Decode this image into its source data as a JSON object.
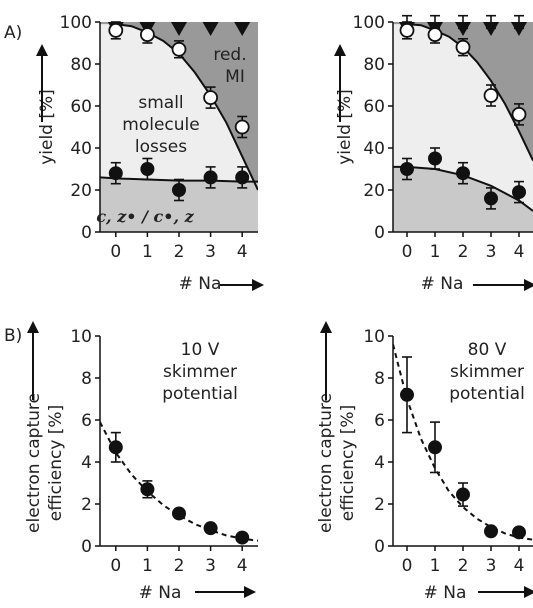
{
  "panel_labels": {
    "a": "A)",
    "b": "B)"
  },
  "colors": {
    "dark_region": "#999999",
    "mid_region": "#eeeeee",
    "low_region": "#c9c9c9",
    "marker": "#111111",
    "open_marker_fill": "#ffffff",
    "curve": "#111111"
  },
  "chart_data": [
    {
      "id": "A-left",
      "type": "scatter",
      "ylabel": "yield [%]",
      "xlabel": "# Na",
      "x": [
        0,
        1,
        2,
        3,
        4
      ],
      "xticks": [
        "0",
        "1",
        "2",
        "3",
        "4"
      ],
      "yticks": [
        "0",
        "20",
        "40",
        "60",
        "80",
        "100"
      ],
      "xlim": [
        -0.5,
        4.5
      ],
      "ylim": [
        0,
        100
      ],
      "regions": {
        "upper": "red. MI",
        "middle_lines": [
          "small",
          "molecule",
          "losses"
        ],
        "lower": "c, z• / c•, z"
      },
      "series": [
        {
          "marker": "triangle-down",
          "values": [
            100,
            100,
            100,
            100,
            100
          ],
          "errors": [
            0,
            0,
            0,
            0,
            0
          ]
        },
        {
          "marker": "open-circle",
          "values": [
            96,
            94,
            87,
            64,
            50
          ],
          "errors": [
            4,
            4,
            4,
            5,
            5
          ]
        },
        {
          "marker": "filled-circle",
          "values": [
            28,
            30,
            20,
            26,
            26
          ],
          "errors": [
            5,
            5,
            5,
            5,
            5
          ]
        }
      ],
      "fit_curves": [
        {
          "kind": "boundary-upper",
          "x": [
            0,
            0.5,
            1,
            1.5,
            2,
            2.5,
            3,
            3.5,
            4,
            4.5
          ],
          "y": [
            99,
            98,
            95,
            91,
            85,
            76,
            65,
            52,
            36,
            20
          ]
        },
        {
          "kind": "boundary-lower",
          "x": [
            -0.5,
            0,
            1,
            2,
            3,
            4,
            4.5
          ],
          "y": [
            26,
            25.5,
            25,
            24.5,
            24.5,
            24,
            24
          ]
        }
      ]
    },
    {
      "id": "A-right",
      "type": "scatter",
      "ylabel": "yield [%]",
      "xlabel": "# Na",
      "x": [
        0,
        1,
        2,
        3,
        4
      ],
      "xticks": [
        "0",
        "1",
        "2",
        "3",
        "4"
      ],
      "yticks": [
        "0",
        "20",
        "40",
        "60",
        "80",
        "100"
      ],
      "xlim": [
        -0.5,
        4.5
      ],
      "ylim": [
        0,
        100
      ],
      "series": [
        {
          "marker": "triangle-down",
          "values": [
            100,
            100,
            100,
            100,
            100
          ],
          "errors": [
            3,
            3,
            3,
            3,
            3
          ]
        },
        {
          "marker": "open-circle",
          "values": [
            96,
            94,
            88,
            65,
            56
          ],
          "errors": [
            4,
            4,
            4,
            5,
            5
          ]
        },
        {
          "marker": "filled-circle",
          "values": [
            30,
            35,
            28,
            16,
            19
          ],
          "errors": [
            5,
            5,
            5,
            5,
            5
          ]
        }
      ],
      "fit_curves": [
        {
          "kind": "boundary-upper",
          "x": [
            0,
            0.5,
            1,
            1.5,
            2,
            2.5,
            3,
            3.5,
            4,
            4.5
          ],
          "y": [
            99,
            98.5,
            96,
            93,
            88,
            81,
            72,
            61,
            48,
            34
          ]
        },
        {
          "kind": "boundary-lower",
          "x": [
            -0.5,
            0,
            1,
            2,
            3,
            4,
            4.5
          ],
          "y": [
            31,
            31,
            30,
            27,
            22,
            15,
            10
          ]
        }
      ]
    },
    {
      "id": "B-left",
      "type": "scatter",
      "ylabel_lines": [
        "electron capture",
        "efficiency [%]"
      ],
      "xlabel": "# Na",
      "x": [
        0,
        1,
        2,
        3,
        4
      ],
      "xticks": [
        "0",
        "1",
        "2",
        "3",
        "4"
      ],
      "yticks": [
        "0",
        "2",
        "4",
        "6",
        "8",
        "10"
      ],
      "xlim": [
        -0.5,
        4.5
      ],
      "ylim": [
        0,
        10
      ],
      "annotation_lines": [
        "10 V",
        "skimmer",
        "potential"
      ],
      "series": [
        {
          "marker": "filled-circle",
          "values": [
            4.7,
            2.7,
            1.55,
            0.85,
            0.4
          ],
          "errors": [
            0.7,
            0.4,
            0.15,
            0.1,
            0.1
          ]
        }
      ],
      "fit_curves": [
        {
          "kind": "dashed",
          "x": [
            -0.5,
            0,
            0.5,
            1,
            1.5,
            2,
            2.5,
            3,
            3.5,
            4,
            4.5
          ],
          "y": [
            5.9,
            4.45,
            3.4,
            2.6,
            1.95,
            1.45,
            1.05,
            0.75,
            0.5,
            0.35,
            0.25
          ]
        }
      ]
    },
    {
      "id": "B-right",
      "type": "scatter",
      "ylabel_lines": [
        "electron capture",
        "efficiency [%]"
      ],
      "xlabel": "# Na",
      "x": [
        0,
        1,
        2,
        3,
        4
      ],
      "xticks": [
        "0",
        "1",
        "2",
        "3",
        "4"
      ],
      "yticks": [
        "0",
        "2",
        "4",
        "6",
        "8",
        "10"
      ],
      "xlim": [
        -0.5,
        4.5
      ],
      "ylim": [
        0,
        10
      ],
      "annotation_lines": [
        "80 V",
        "skimmer",
        "potential"
      ],
      "series": [
        {
          "marker": "filled-circle",
          "values": [
            7.2,
            4.7,
            2.45,
            0.7,
            0.65
          ],
          "errors": [
            1.8,
            1.2,
            0.55,
            0.1,
            0.1
          ]
        }
      ],
      "fit_curves": [
        {
          "kind": "dashed",
          "x": [
            -0.5,
            0,
            0.5,
            1,
            1.5,
            2,
            2.5,
            3,
            3.5,
            4,
            4.5
          ],
          "y": [
            9.6,
            7.0,
            5.1,
            3.7,
            2.6,
            1.85,
            1.3,
            0.9,
            0.6,
            0.4,
            0.3
          ]
        }
      ]
    }
  ]
}
